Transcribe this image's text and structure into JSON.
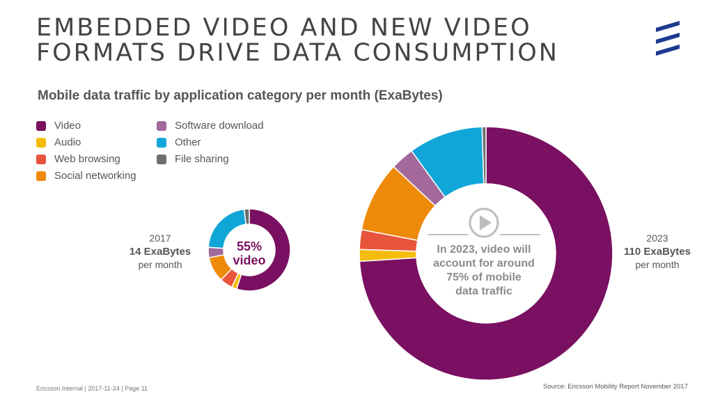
{
  "header": {
    "title_line1": "EMBEDDED VIDEO AND NEW VIDEO",
    "title_line2": "FORMATS DRIVE DATA CONSUMPTION"
  },
  "subtitle": "Mobile data traffic by application category per month (ExaBytes)",
  "legend": [
    {
      "label": "Video",
      "color": "#7a1061"
    },
    {
      "label": "Audio",
      "color": "#f5bc0e"
    },
    {
      "label": "Web browsing",
      "color": "#e8543c"
    },
    {
      "label": "Social networking",
      "color": "#ee8a0a"
    },
    {
      "label": "Software download",
      "color": "#a2699a"
    },
    {
      "label": "Other",
      "color": "#10a7d8"
    },
    {
      "label": "File sharing",
      "color": "#6e6e6e"
    }
  ],
  "chart_data": [
    {
      "type": "pie",
      "year": "2017",
      "total": "14 ExaBytes",
      "unit": "per month",
      "center_label": [
        "55%",
        "video"
      ],
      "categories": [
        "Video",
        "Audio",
        "Web browsing",
        "Social networking",
        "Software download",
        "Other",
        "File sharing"
      ],
      "values": [
        55,
        2,
        5,
        10,
        4,
        22,
        2
      ]
    },
    {
      "type": "pie",
      "year": "2023",
      "total": "110 ExaBytes",
      "unit": "per month",
      "center_label": [
        "In 2023, video will",
        "account for around",
        "75% of mobile",
        "data traffic"
      ],
      "categories": [
        "Video",
        "Audio",
        "Web browsing",
        "Social networking",
        "Software download",
        "Other",
        "File sharing"
      ],
      "values": [
        74,
        1.5,
        2.5,
        9,
        3,
        9.5,
        0.5
      ]
    }
  ],
  "footer": {
    "left": "Ericsson Internal  |  2017-11-24  |  Page 11",
    "source": "Source: Ericsson Mobility Report November 2017"
  }
}
